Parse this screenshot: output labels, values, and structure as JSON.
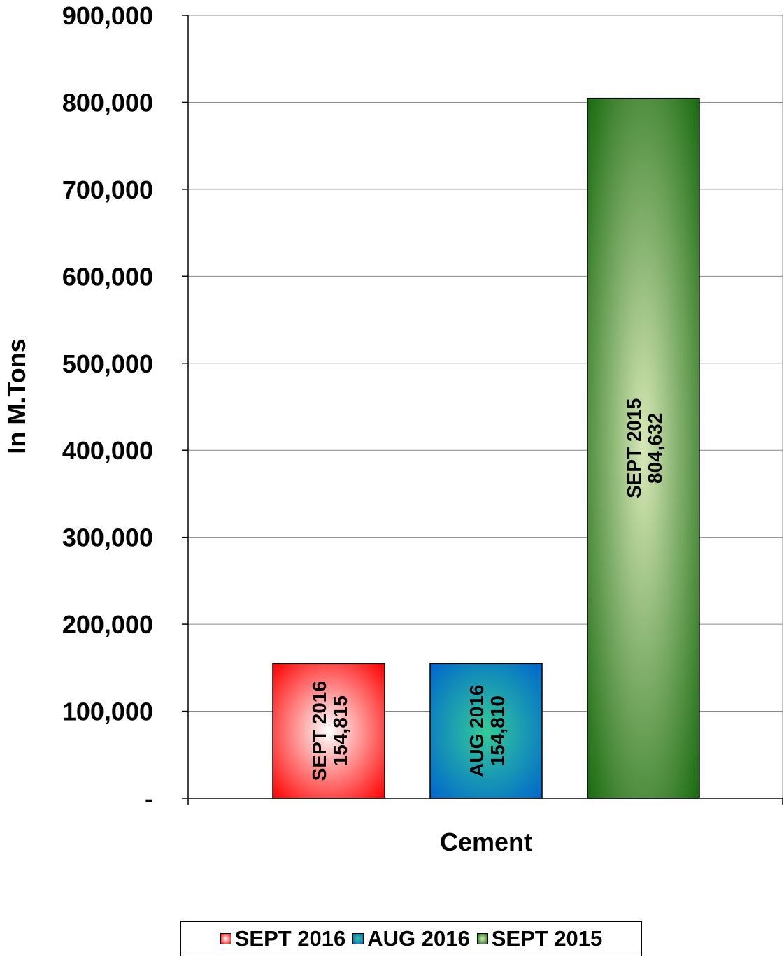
{
  "chart_data": {
    "type": "bar",
    "categories": [
      "Cement"
    ],
    "series": [
      {
        "name": "SEPT 2016",
        "values": [
          154815
        ],
        "label": "SEPT 2016",
        "value_label": "154,815",
        "color": "#ff0000",
        "light": "#ffffff"
      },
      {
        "name": "AUG 2016",
        "values": [
          154810
        ],
        "label": "AUG 2016",
        "value_label": "154,810",
        "color": "#0066cc",
        "light": "#33cc99"
      },
      {
        "name": "SEPT 2015",
        "values": [
          804632
        ],
        "label": "SEPT 2015",
        "value_label": "804,632",
        "color": "#1a6b10",
        "light": "#d8e8b8"
      }
    ],
    "ylim": [
      0,
      900000
    ],
    "yticks": [
      0,
      100000,
      200000,
      300000,
      400000,
      500000,
      600000,
      700000,
      800000,
      900000
    ],
    "ytick_labels": [
      "-",
      "100,000",
      "200,000",
      "300,000",
      "400,000",
      "500,000",
      "600,000",
      "700,000",
      "800,000",
      "900,000"
    ],
    "xlabel": "Cement",
    "ylabel": "In M.Tons",
    "grid": true,
    "legend_position": "bottom"
  }
}
